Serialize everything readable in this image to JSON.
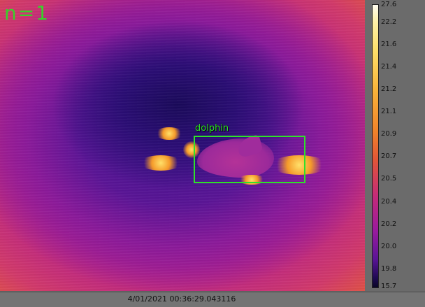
{
  "overlay": {
    "count_label": "n=1",
    "detection_label": "dolphin"
  },
  "colorbar": {
    "ticks": [
      "27.6",
      "22.2",
      "21.6",
      "21.4",
      "21.2",
      "21.1",
      "20.9",
      "20.7",
      "20.5",
      "20.4",
      "20.2",
      "20.0",
      "19.8",
      "15.7"
    ]
  },
  "status": {
    "timestamp": "4/01/2021 00:36:29.043116"
  },
  "colors": {
    "box": "#2fe12a",
    "label": "#39d12a"
  }
}
